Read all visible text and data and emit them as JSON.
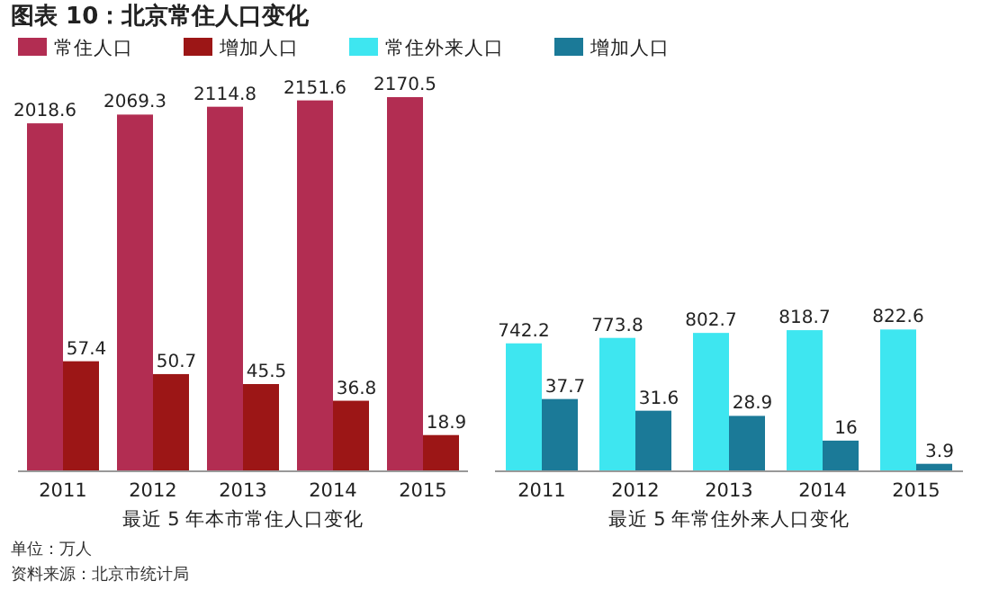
{
  "chart_data": [
    {
      "type": "bar",
      "title": "图表 10：北京常住人口变化",
      "categories": [
        "2011",
        "2012",
        "2013",
        "2014",
        "2015"
      ],
      "xlabel": "最近 5 年本市常住人口变化",
      "data_labels": true,
      "legend": "top",
      "series": [
        {
          "name": "常住人口",
          "color": "#b22d52",
          "values": [
            2018.6,
            2069.3,
            2114.8,
            2151.6,
            2170.5
          ]
        },
        {
          "name": "增加人口",
          "color": "#9c1616",
          "axis": "y2",
          "values": [
            57.4,
            50.7,
            45.5,
            36.8,
            18.9
          ]
        }
      ],
      "annotations": [
        "单位：万人",
        "资料来源：北京市统计局"
      ]
    },
    {
      "type": "bar",
      "categories": [
        "2011",
        "2012",
        "2013",
        "2014",
        "2015"
      ],
      "xlabel": "最近 5 年常住外来人口变化",
      "data_labels": true,
      "legend": "top",
      "series": [
        {
          "name": "常住外来人口",
          "color": "#3ee6f0",
          "values": [
            742.2,
            773.8,
            802.7,
            818.7,
            822.6
          ]
        },
        {
          "name": "增加人口",
          "color": "#1b7a98",
          "axis": "y2",
          "values": [
            37.7,
            31.6,
            28.9,
            16,
            3.9
          ]
        }
      ]
    }
  ]
}
